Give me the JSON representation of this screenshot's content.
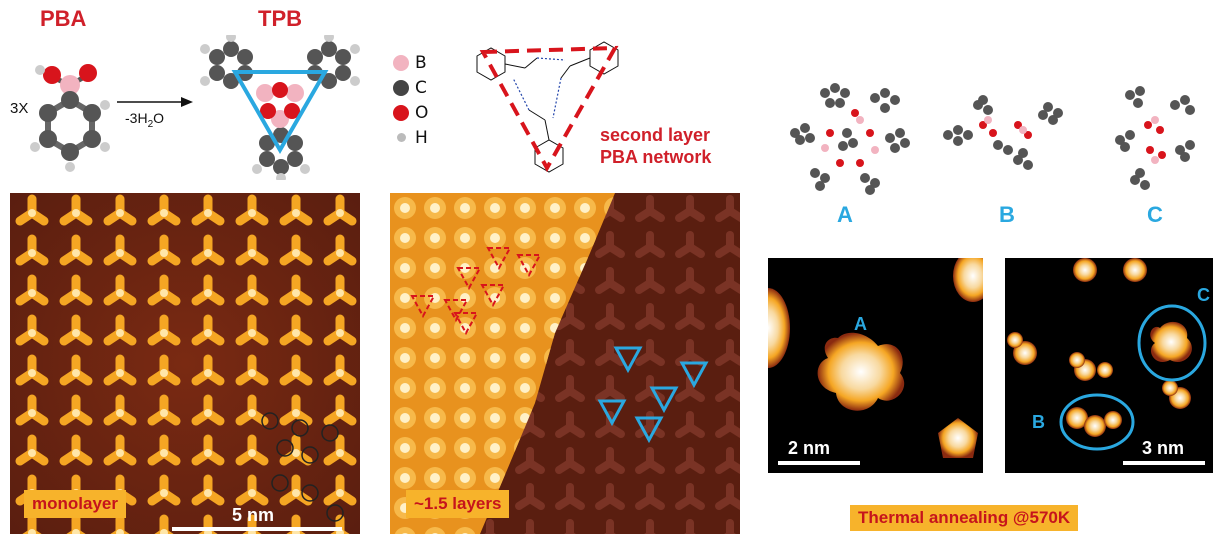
{
  "reaction": {
    "reactant_label": "PBA",
    "product_label": "TPB",
    "stoich": "3X",
    "arrow_label": "-3H",
    "arrow_label_sub": "2",
    "arrow_label_tail": "O"
  },
  "legend": {
    "items": [
      {
        "symbol": "B",
        "color": "#f2b3c0"
      },
      {
        "symbol": "C",
        "color": "#444444"
      },
      {
        "symbol": "O",
        "color": "#d8141c"
      },
      {
        "symbol": "H",
        "color": "#bbbbbb"
      }
    ]
  },
  "network_caption": {
    "line1": "second layer",
    "line2": "PBA network"
  },
  "panels": {
    "monolayer": {
      "badge": "monolayer",
      "scalebar": "5 nm"
    },
    "bilayer": {
      "badge": "~1.5 layers"
    },
    "annealing": {
      "structures": [
        "A",
        "B",
        "C"
      ],
      "left_image": {
        "label": "A",
        "scalebar": "2 nm"
      },
      "right_image": {
        "labels": [
          "B",
          "C"
        ],
        "scalebar": "3 nm"
      },
      "caption": "Thermal annealing @570K"
    }
  },
  "colors": {
    "label_red": "#d0202a",
    "accent_blue": "#2aa8e0",
    "badge_bg": "#f7b32b",
    "stm_dark": "#5a1e10",
    "stm_bright": "#f5a623"
  }
}
